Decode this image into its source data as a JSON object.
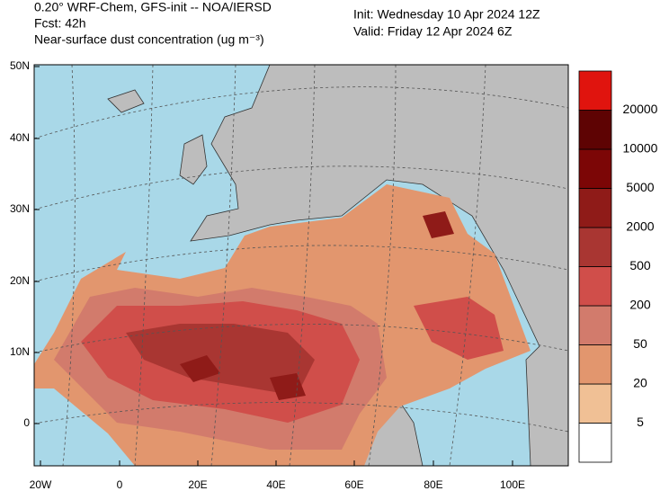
{
  "header": {
    "title": "0.20° WRF-Chem, GFS-init -- NOA/IERSD",
    "forecast": "Fcst: 42h",
    "variable": "Near-surface dust concentration (ug m⁻³)",
    "init": "Init: Wednesday 10 Apr 2024  12Z",
    "valid": "Valid: Friday 12 Apr 2024  6Z"
  },
  "map": {
    "lat_labels": [
      "50N",
      "40N",
      "30N",
      "20N",
      "10N",
      "0"
    ],
    "lon_labels": [
      "20W",
      "0",
      "20E",
      "40E",
      "60E",
      "80E",
      "100E"
    ]
  },
  "colorbar": {
    "levels": [
      5,
      20,
      50,
      200,
      500,
      2000,
      5000,
      10000,
      20000
    ],
    "colors": [
      "#ffffff",
      "#f0c095",
      "#e2966e",
      "#d27b6c",
      "#d04e4a",
      "#a93632",
      "#8f1b18",
      "#7c0606",
      "#5e0303",
      "#e0140e"
    ]
  }
}
